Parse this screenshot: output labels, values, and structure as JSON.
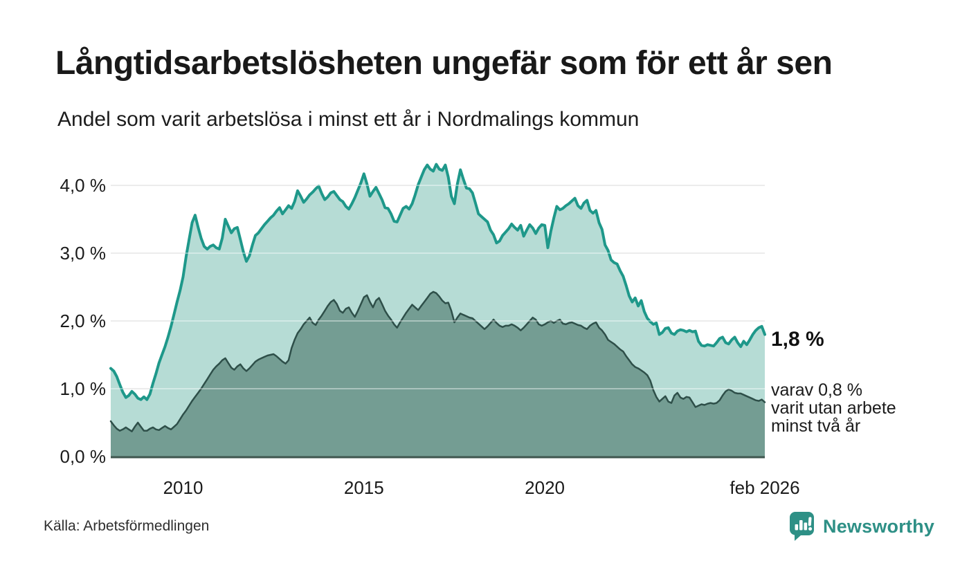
{
  "chart_data": {
    "type": "area",
    "title": "Långtidsarbetslösheten ungefär som för ett år sen",
    "subtitle": "Andel som varit arbetslösa i minst ett år i Nordmalings kommun",
    "unit": "%",
    "interval": "monthly",
    "start": "2008-01",
    "end": "2026-02",
    "ylim": [
      0,
      4.5
    ],
    "grid": true,
    "yticks": [
      {
        "v": 0,
        "label": "0,0 %"
      },
      {
        "v": 1,
        "label": "1,0 %"
      },
      {
        "v": 2,
        "label": "2,0 %"
      },
      {
        "v": 3,
        "label": "3,0 %"
      },
      {
        "v": 4,
        "label": "4,0 %"
      }
    ],
    "xticks": [
      {
        "label": "2010",
        "year": 2010.0
      },
      {
        "label": "2015",
        "year": 2015.0
      },
      {
        "label": "2020",
        "year": 2020.0
      },
      {
        "label": "feb 2026",
        "year": 2026.083
      }
    ],
    "colors": {
      "line_one_year": "#1e988a",
      "fill_one_year": "#b6dcd5",
      "line_two_years": "#2e4f49",
      "fill_two_years": "#749d93",
      "gridline": "#e0e0e0",
      "baseline": "#3f564f"
    },
    "series": [
      {
        "name": "Arbetslösa minst ett år",
        "values": [
          1.3,
          1.26,
          1.18,
          1.06,
          0.95,
          0.87,
          0.9,
          0.96,
          0.92,
          0.86,
          0.84,
          0.88,
          0.84,
          0.92,
          1.08,
          1.22,
          1.38,
          1.5,
          1.62,
          1.76,
          1.92,
          2.1,
          2.28,
          2.45,
          2.65,
          2.95,
          3.2,
          3.45,
          3.56,
          3.38,
          3.22,
          3.1,
          3.06,
          3.1,
          3.12,
          3.08,
          3.06,
          3.22,
          3.5,
          3.4,
          3.3,
          3.36,
          3.38,
          3.2,
          3.02,
          2.88,
          2.96,
          3.12,
          3.26,
          3.3,
          3.36,
          3.42,
          3.47,
          3.52,
          3.56,
          3.62,
          3.67,
          3.58,
          3.64,
          3.7,
          3.66,
          3.76,
          3.92,
          3.84,
          3.75,
          3.8,
          3.86,
          3.9,
          3.95,
          3.99,
          3.88,
          3.79,
          3.83,
          3.89,
          3.91,
          3.85,
          3.79,
          3.76,
          3.69,
          3.65,
          3.73,
          3.82,
          3.93,
          4.04,
          4.17,
          4.02,
          3.84,
          3.91,
          3.97,
          3.88,
          3.79,
          3.67,
          3.66,
          3.58,
          3.47,
          3.46,
          3.56,
          3.66,
          3.69,
          3.65,
          3.73,
          3.86,
          4.01,
          4.12,
          4.23,
          4.3,
          4.24,
          4.21,
          4.31,
          4.24,
          4.22,
          4.3,
          4.12,
          3.84,
          3.73,
          4.02,
          4.23,
          4.09,
          3.96,
          3.95,
          3.89,
          3.74,
          3.58,
          3.54,
          3.5,
          3.46,
          3.34,
          3.27,
          3.15,
          3.18,
          3.26,
          3.31,
          3.36,
          3.43,
          3.38,
          3.34,
          3.41,
          3.25,
          3.34,
          3.42,
          3.37,
          3.29,
          3.37,
          3.42,
          3.41,
          3.08,
          3.32,
          3.52,
          3.69,
          3.64,
          3.66,
          3.7,
          3.73,
          3.77,
          3.81,
          3.7,
          3.66,
          3.74,
          3.78,
          3.63,
          3.59,
          3.63,
          3.45,
          3.35,
          3.12,
          3.04,
          2.9,
          2.86,
          2.84,
          2.74,
          2.66,
          2.52,
          2.37,
          2.28,
          2.34,
          2.22,
          2.3,
          2.14,
          2.04,
          1.99,
          1.95,
          1.97,
          1.8,
          1.83,
          1.89,
          1.9,
          1.82,
          1.8,
          1.85,
          1.87,
          1.86,
          1.84,
          1.86,
          1.84,
          1.85,
          1.7,
          1.64,
          1.63,
          1.65,
          1.64,
          1.63,
          1.68,
          1.74,
          1.76,
          1.68,
          1.66,
          1.72,
          1.76,
          1.68,
          1.62,
          1.7,
          1.65,
          1.72,
          1.8,
          1.86,
          1.9,
          1.92,
          1.8
        ]
      },
      {
        "name": "Arbetslösa minst två år",
        "values": [
          0.52,
          0.46,
          0.41,
          0.38,
          0.4,
          0.43,
          0.4,
          0.37,
          0.44,
          0.5,
          0.44,
          0.38,
          0.38,
          0.41,
          0.43,
          0.4,
          0.39,
          0.42,
          0.45,
          0.42,
          0.4,
          0.44,
          0.48,
          0.55,
          0.62,
          0.68,
          0.75,
          0.82,
          0.88,
          0.94,
          1.0,
          1.07,
          1.14,
          1.21,
          1.28,
          1.33,
          1.37,
          1.42,
          1.45,
          1.38,
          1.31,
          1.28,
          1.33,
          1.36,
          1.3,
          1.26,
          1.3,
          1.35,
          1.4,
          1.43,
          1.45,
          1.47,
          1.49,
          1.5,
          1.51,
          1.48,
          1.44,
          1.4,
          1.37,
          1.42,
          1.6,
          1.72,
          1.82,
          1.88,
          1.95,
          2.0,
          2.05,
          1.97,
          1.94,
          2.02,
          2.08,
          2.15,
          2.22,
          2.28,
          2.31,
          2.25,
          2.15,
          2.12,
          2.18,
          2.2,
          2.12,
          2.06,
          2.15,
          2.25,
          2.35,
          2.38,
          2.28,
          2.2,
          2.3,
          2.34,
          2.25,
          2.15,
          2.08,
          2.02,
          1.95,
          1.9,
          1.98,
          2.05,
          2.12,
          2.18,
          2.24,
          2.2,
          2.16,
          2.22,
          2.28,
          2.34,
          2.4,
          2.43,
          2.41,
          2.36,
          2.3,
          2.26,
          2.27,
          2.15,
          1.98,
          2.05,
          2.11,
          2.09,
          2.07,
          2.05,
          2.04,
          2.0,
          1.96,
          1.92,
          1.88,
          1.92,
          1.97,
          2.02,
          1.97,
          1.93,
          1.91,
          1.93,
          1.93,
          1.95,
          1.93,
          1.9,
          1.86,
          1.9,
          1.95,
          2.0,
          2.05,
          2.02,
          1.95,
          1.93,
          1.95,
          1.98,
          2.0,
          1.97,
          2.0,
          2.02,
          1.96,
          1.95,
          1.97,
          1.98,
          1.96,
          1.94,
          1.93,
          1.9,
          1.88,
          1.93,
          1.96,
          1.98,
          1.9,
          1.86,
          1.8,
          1.72,
          1.69,
          1.66,
          1.62,
          1.58,
          1.55,
          1.48,
          1.42,
          1.36,
          1.32,
          1.3,
          1.27,
          1.24,
          1.2,
          1.12,
          0.98,
          0.88,
          0.81,
          0.85,
          0.89,
          0.81,
          0.79,
          0.9,
          0.94,
          0.87,
          0.85,
          0.88,
          0.87,
          0.8,
          0.73,
          0.75,
          0.77,
          0.76,
          0.78,
          0.79,
          0.78,
          0.79,
          0.83,
          0.9,
          0.96,
          0.99,
          0.97,
          0.94,
          0.93,
          0.93,
          0.91,
          0.89,
          0.87,
          0.85,
          0.83,
          0.82,
          0.84,
          0.8
        ]
      }
    ],
    "end_labels": {
      "primary": "1,8 %",
      "secondary_lines": [
        "varav 0,8 %",
        "varit utan arbete",
        "minst två år"
      ]
    }
  },
  "footer": {
    "source": "Källa: Arbetsförmedlingen",
    "brand": "Newsworthy"
  }
}
